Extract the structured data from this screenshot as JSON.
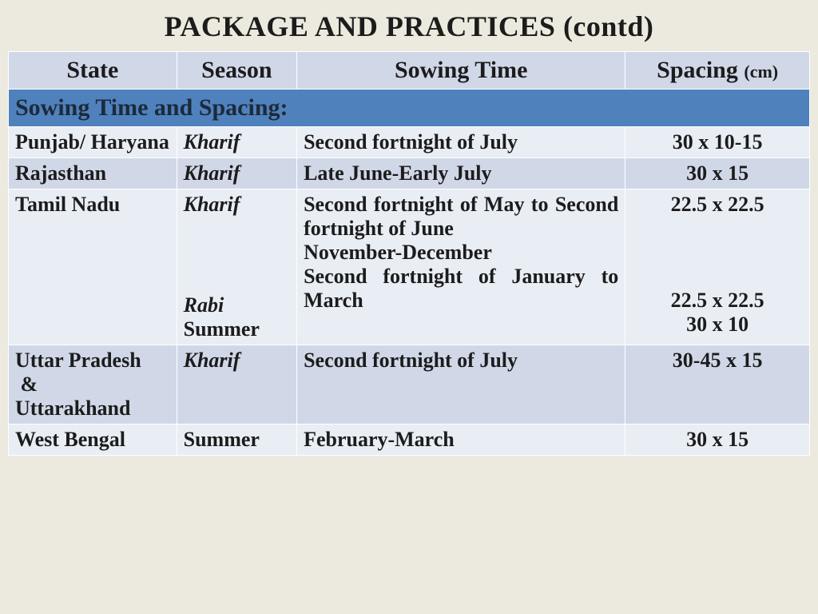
{
  "colors": {
    "page_bg": "#eceade",
    "banner_bg": "#4f81bd",
    "header_bg": "#d0d8e8",
    "row_light": "#e9edf4",
    "row_dark": "#d0d8e8",
    "text": "#1c1c1c",
    "border": "#ffffff"
  },
  "typography": {
    "family": "Times New Roman",
    "title_size_pt": 27,
    "section_size_pt": 22,
    "header_size_pt": 22,
    "cell_size_pt": 20,
    "unit_size_pt": 16
  },
  "title_main": "PACKAGE AND PRACTICES ",
  "title_contd": "(contd)",
  "section_title": "Sowing Time and Spacing:",
  "columns": {
    "state": "State",
    "season": "Season",
    "sowing_time": "Sowing Time",
    "spacing": "Spacing ",
    "spacing_unit": "(cm)"
  },
  "column_widths_pct": {
    "state": 21,
    "season": 15,
    "sowing_time": 41,
    "spacing": 23
  },
  "rows": [
    {
      "shade": "light",
      "state": "Punjab/ Haryana",
      "season": "Kharif",
      "season_italic": true,
      "sowing_time": "Second fortnight of July",
      "spacing": "30 x 10-15"
    },
    {
      "shade": "dark",
      "state": "Rajasthan",
      "season": "Kharif",
      "season_italic": true,
      "sowing_time": "Late June-Early July",
      "spacing": "30 x 15"
    },
    {
      "shade": "light",
      "state": "Tamil Nadu",
      "seasons": [
        {
          "label": "Kharif",
          "italic": true
        },
        {
          "label": "Rabi",
          "italic": true
        },
        {
          "label": "Summer",
          "italic": false
        }
      ],
      "sowing_times": [
        "Second fortnight of May to Second fortnight of June",
        "November-December",
        "Second fortnight of January to March"
      ],
      "spacings": [
        "22.5 x 22.5",
        "22.5 x 22.5",
        "30 x 10"
      ]
    },
    {
      "shade": "dark",
      "state": "Uttar Pradesh & Uttarakhand",
      "season": "Kharif",
      "season_italic": true,
      "sowing_time": "Second fortnight of July",
      "spacing": "30-45 x 15"
    },
    {
      "shade": "light",
      "state": "West Bengal",
      "season": "Summer",
      "season_italic": false,
      "sowing_time": "February-March",
      "spacing": "30 x 15"
    }
  ]
}
